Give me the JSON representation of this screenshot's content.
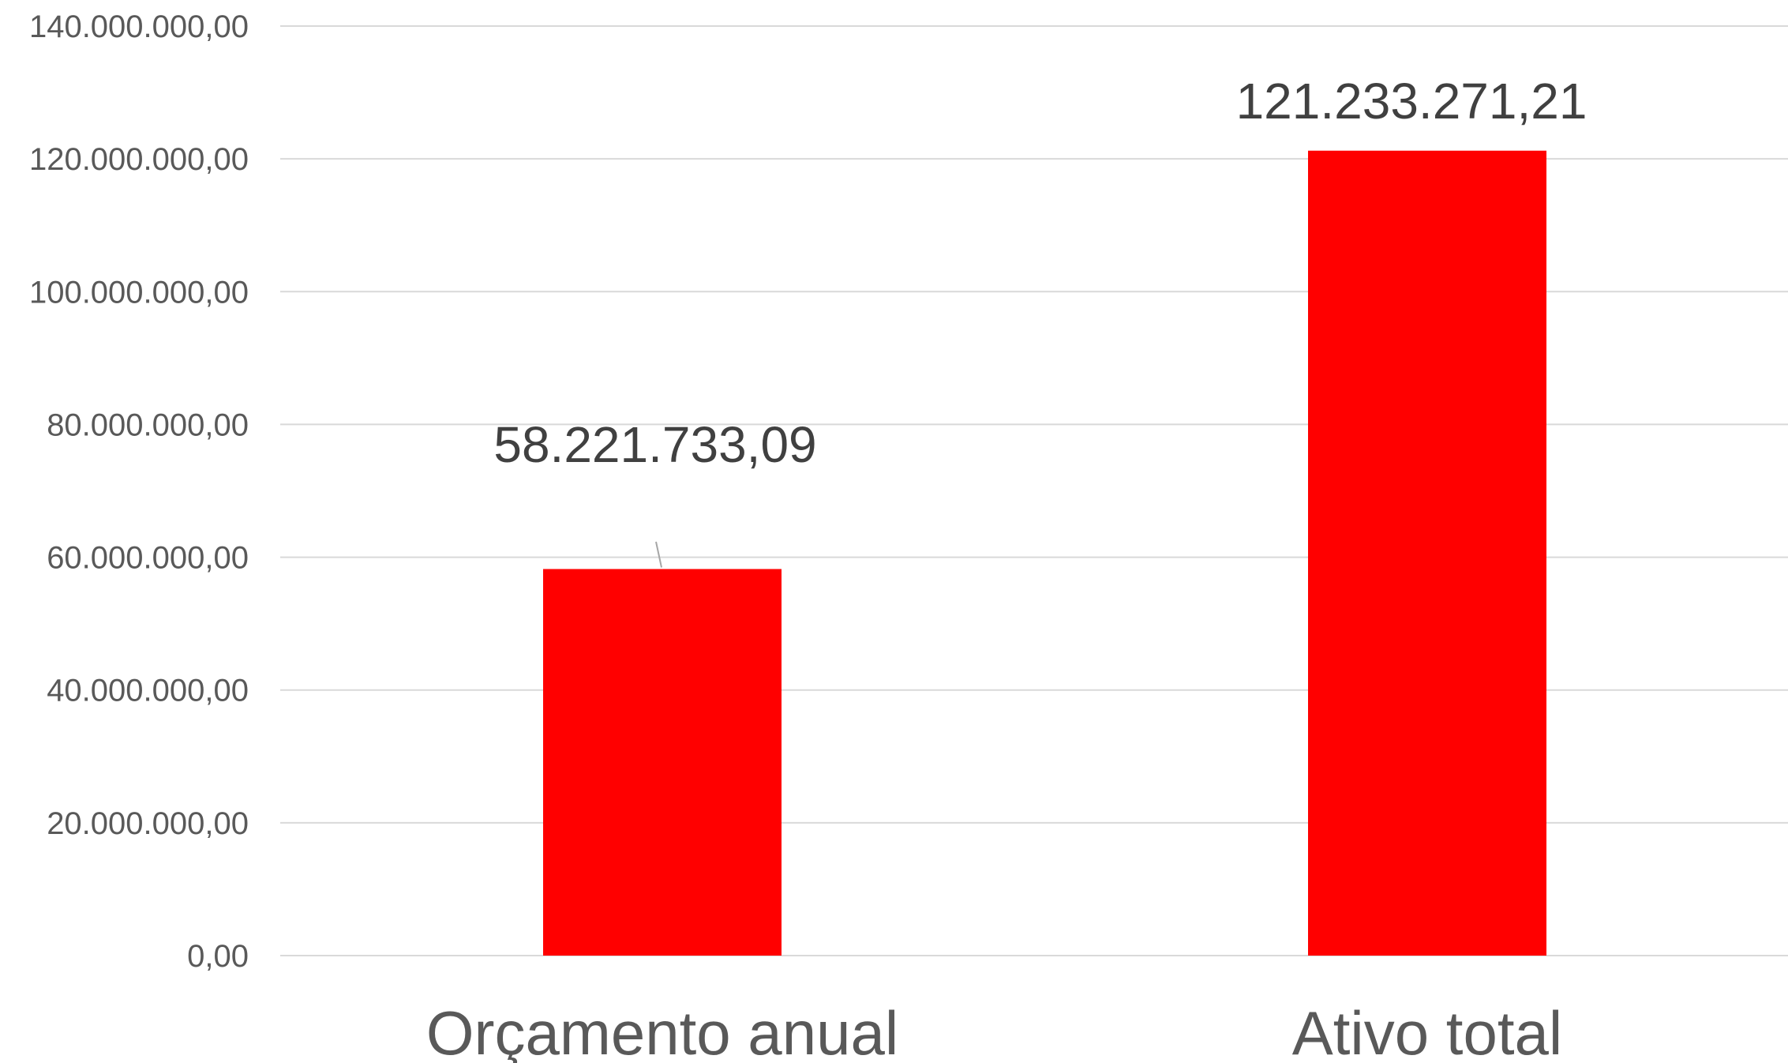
{
  "chart_data": {
    "type": "bar",
    "categories": [
      "Orçamento anual",
      "Ativo total"
    ],
    "values": [
      58221733.09,
      121233271.21
    ],
    "data_labels": [
      "58.221.733,09",
      "121.233.271,21"
    ],
    "y_ticks": [
      0,
      20000000,
      40000000,
      60000000,
      80000000,
      100000000,
      120000000,
      140000000
    ],
    "y_tick_labels": [
      "0,00",
      "20.000.000,00",
      "40.000.000,00",
      "60.000.000,00",
      "80.000.000,00",
      "100.000.000,00",
      "120.000.000,00",
      "140.000.000,00"
    ],
    "ylim": [
      0,
      140000000
    ],
    "grid": true,
    "legend": "none",
    "bar_color": "#ff0000"
  }
}
